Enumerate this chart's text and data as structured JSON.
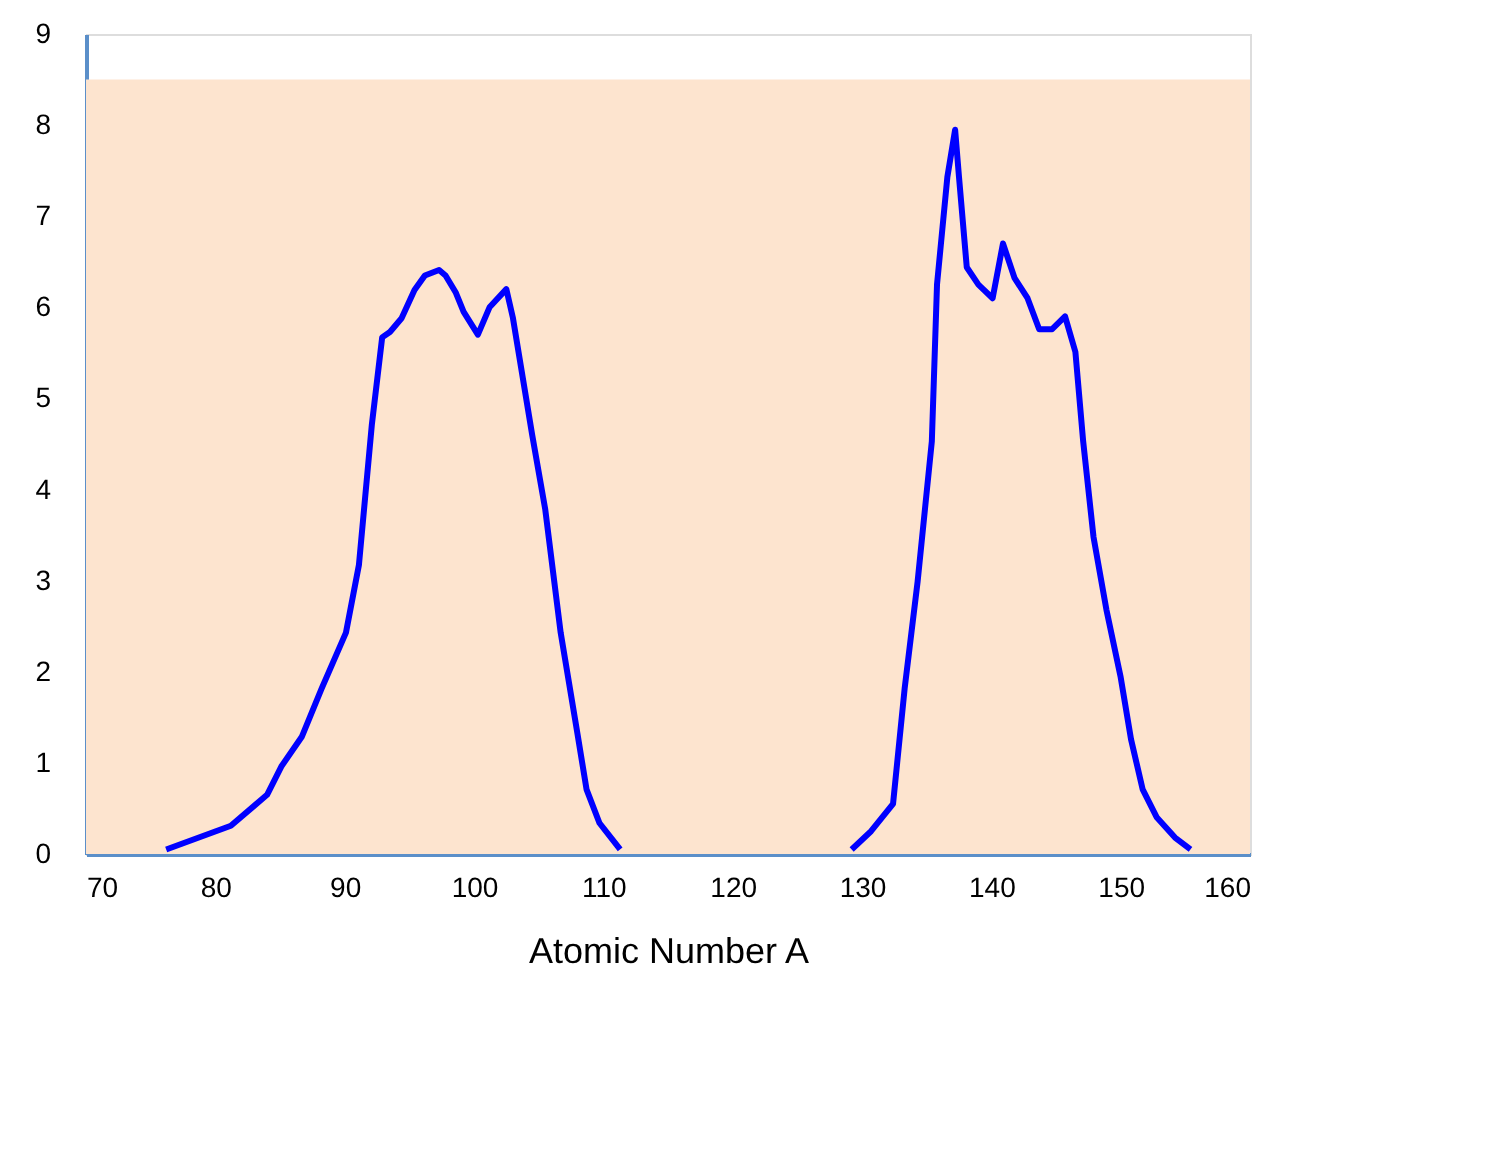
{
  "chart_data": {
    "type": "line",
    "xlabel": "Atomic Number A",
    "x": [
      76.2,
      81.2,
      84.0,
      85.1,
      86.7,
      88.2,
      90.1,
      91.1,
      92.1,
      92.9,
      93.5,
      94.4,
      95.4,
      96.2,
      97.3,
      97.8,
      98.6,
      99.2,
      100.3,
      101.2,
      102.5,
      103.0,
      104.5,
      105.5,
      106.7,
      108.0,
      108.7,
      109.7,
      111.3,
      120,
      129.2,
      130.7,
      132.4,
      133.3,
      134.3,
      135.4,
      135.8,
      136.6,
      137.2,
      137.5,
      138.1,
      139.0,
      140.1,
      140.9,
      141.8,
      142.8,
      143.7,
      144.7,
      145.7,
      146.5,
      147.1,
      147.9,
      148.9,
      150.0,
      150.8,
      151.7,
      152.8,
      154.2,
      155.4
    ],
    "series": [
      {
        "color": "#0000ff",
        "values": [
          0.05,
          0.31,
          0.65,
          0.96,
          1.29,
          1.81,
          2.43,
          3.17,
          4.71,
          5.67,
          5.73,
          5.88,
          6.19,
          6.35,
          6.41,
          6.35,
          6.16,
          5.95,
          5.7,
          6.0,
          6.2,
          5.89,
          4.6,
          3.79,
          2.43,
          1.32,
          0.71,
          0.34,
          0.05,
          null,
          0.05,
          0.25,
          0.55,
          1.82,
          2.99,
          4.53,
          6.25,
          7.43,
          7.95,
          7.43,
          6.44,
          6.25,
          6.1,
          6.7,
          6.32,
          6.1,
          5.76,
          5.76,
          5.9,
          5.51,
          4.53,
          3.48,
          2.68,
          1.94,
          1.26,
          0.71,
          0.4,
          0.18,
          0.05
        ]
      }
    ],
    "xlim": [
      70,
      160
    ],
    "xticks": [
      70,
      80,
      90,
      100,
      110,
      120,
      130,
      140,
      150,
      160
    ],
    "ylim": [
      0,
      9
    ],
    "yticks": [
      0,
      1,
      2,
      3,
      4,
      5,
      6,
      7,
      8,
      9
    ],
    "bands": [
      {
        "axis": "y",
        "from": 0,
        "to": 8.5,
        "color": "#fde4cf"
      }
    ],
    "grid": false,
    "legend": false,
    "marker": "none",
    "line_style": "solid"
  }
}
